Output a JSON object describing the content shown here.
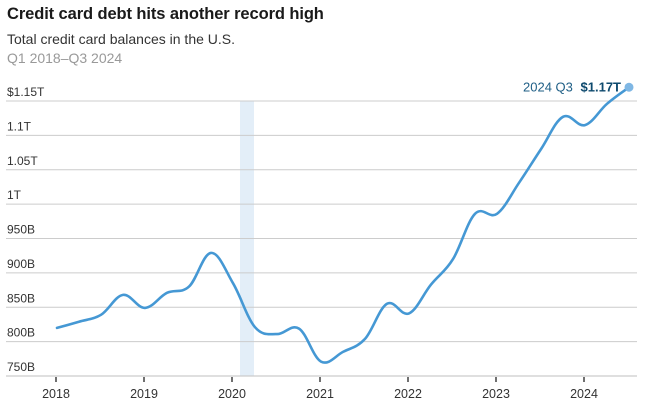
{
  "header": {
    "title": "Credit card debt hits another record high",
    "subtitle": "Total credit card balances in the U.S.",
    "date_range": "Q1 2018–Q3 2024"
  },
  "annotation": {
    "label": "2024 Q3",
    "value": "$1.17T"
  },
  "colors": {
    "line": "#4598d4",
    "endpoint": "#7fb7e4",
    "recession_band": "#e3eef8",
    "grid": "#cccccc",
    "annotation": "#1f5f86"
  },
  "chart_data": {
    "type": "line",
    "title": "Credit card debt hits another record high",
    "subtitle": "Total credit card balances in the U.S.",
    "xlabel": "",
    "ylabel": "",
    "ylim": [
      750,
      1150
    ],
    "y_unit": "billions USD",
    "y_ticks": [
      {
        "value": 1150,
        "label": "$1.15T"
      },
      {
        "value": 1100,
        "label": "1.1T"
      },
      {
        "value": 1050,
        "label": "1.05T"
      },
      {
        "value": 1000,
        "label": "1T"
      },
      {
        "value": 950,
        "label": "950B"
      },
      {
        "value": 900,
        "label": "900B"
      },
      {
        "value": 850,
        "label": "850B"
      },
      {
        "value": 800,
        "label": "800B"
      },
      {
        "value": 750,
        "label": "750B"
      }
    ],
    "x_ticks": [
      "2018",
      "2019",
      "2020",
      "2021",
      "2022",
      "2023",
      "2024"
    ],
    "grid": true,
    "legend": null,
    "shaded_region": {
      "from": "2020 Q1",
      "to": "2020 Q2",
      "meaning": "recession"
    },
    "series": [
      {
        "name": "Total credit card balances",
        "x": [
          "2018 Q1",
          "2018 Q2",
          "2018 Q3",
          "2018 Q4",
          "2019 Q1",
          "2019 Q2",
          "2019 Q3",
          "2019 Q4",
          "2020 Q1",
          "2020 Q2",
          "2020 Q3",
          "2020 Q4",
          "2021 Q1",
          "2021 Q2",
          "2021 Q3",
          "2021 Q4",
          "2022 Q1",
          "2022 Q2",
          "2022 Q3",
          "2022 Q4",
          "2023 Q1",
          "2023 Q2",
          "2023 Q3",
          "2023 Q4",
          "2024 Q1",
          "2024 Q2",
          "2024 Q3"
        ],
        "values": [
          820,
          829,
          839,
          868,
          849,
          871,
          880,
          929,
          885,
          821,
          811,
          819,
          771,
          785,
          804,
          855,
          841,
          883,
          920,
          986,
          986,
          1031,
          1080,
          1127,
          1115,
          1146,
          1170
        ]
      }
    ],
    "annotations": [
      {
        "x": "2024 Q3",
        "text": "2024 Q3 $1.17T"
      }
    ]
  }
}
